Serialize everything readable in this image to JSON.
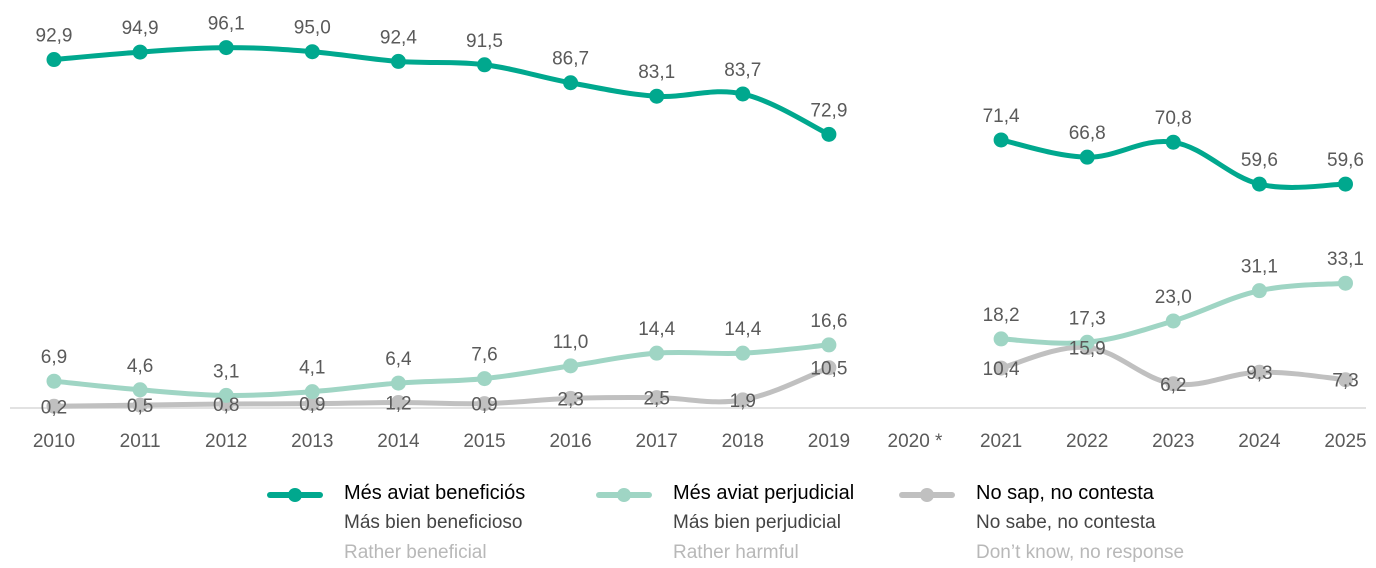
{
  "chart_data": {
    "type": "line",
    "categories": [
      "2010",
      "2011",
      "2012",
      "2013",
      "2014",
      "2015",
      "2016",
      "2017",
      "2018",
      "2019",
      "2020 *",
      "2021",
      "2022",
      "2023",
      "2024",
      "2025"
    ],
    "series": [
      {
        "name": "Més aviat beneficiós",
        "name_es": "Más bien beneficioso",
        "name_en": "Rather beneficial",
        "color": "#00a88e",
        "values": [
          92.9,
          94.9,
          96.1,
          95.0,
          92.4,
          91.5,
          86.7,
          83.1,
          83.7,
          72.9,
          null,
          71.4,
          66.8,
          70.8,
          59.6,
          59.6
        ],
        "labels": [
          "92,9",
          "94,9",
          "96,1",
          "95,0",
          "92,4",
          "91,5",
          "86,7",
          "83,1",
          "83,7",
          "72,9",
          "",
          "71,4",
          "66,8",
          "70,8",
          "59,6",
          "59,6"
        ]
      },
      {
        "name": "Més aviat perjudicial",
        "name_es": "Más bien perjudicial",
        "name_en": "Rather harmful",
        "color": "#9fd5c4",
        "values": [
          6.9,
          4.6,
          3.1,
          4.1,
          6.4,
          7.6,
          11.0,
          14.4,
          14.4,
          16.6,
          null,
          18.2,
          17.3,
          23.0,
          31.1,
          33.1
        ],
        "labels": [
          "6,9",
          "4,6",
          "3,1",
          "4,1",
          "6,4",
          "7,6",
          "11,0",
          "14,4",
          "14,4",
          "16,6",
          "",
          "18,2",
          "17,3",
          "23,0",
          "31,1",
          "33,1"
        ]
      },
      {
        "name": "No sap, no contesta",
        "name_es": "No sabe, no contesta",
        "name_en": "Don’t know, no response",
        "color": "#c0c0c0",
        "values": [
          0.2,
          0.5,
          0.8,
          0.9,
          1.2,
          0.9,
          2.3,
          2.5,
          1.9,
          10.5,
          null,
          10.4,
          15.9,
          6.2,
          9.3,
          7.3
        ],
        "labels": [
          "0,2",
          "0,5",
          "0,8",
          "0,9",
          "1,2",
          "0,9",
          "2,3",
          "2,5",
          "1,9",
          "10,5",
          "",
          "10,4",
          "15,9",
          "6,2",
          "9,3",
          "7,3"
        ]
      }
    ],
    "ylim": [
      0,
      100
    ],
    "grid": false,
    "legend": "bottom"
  }
}
